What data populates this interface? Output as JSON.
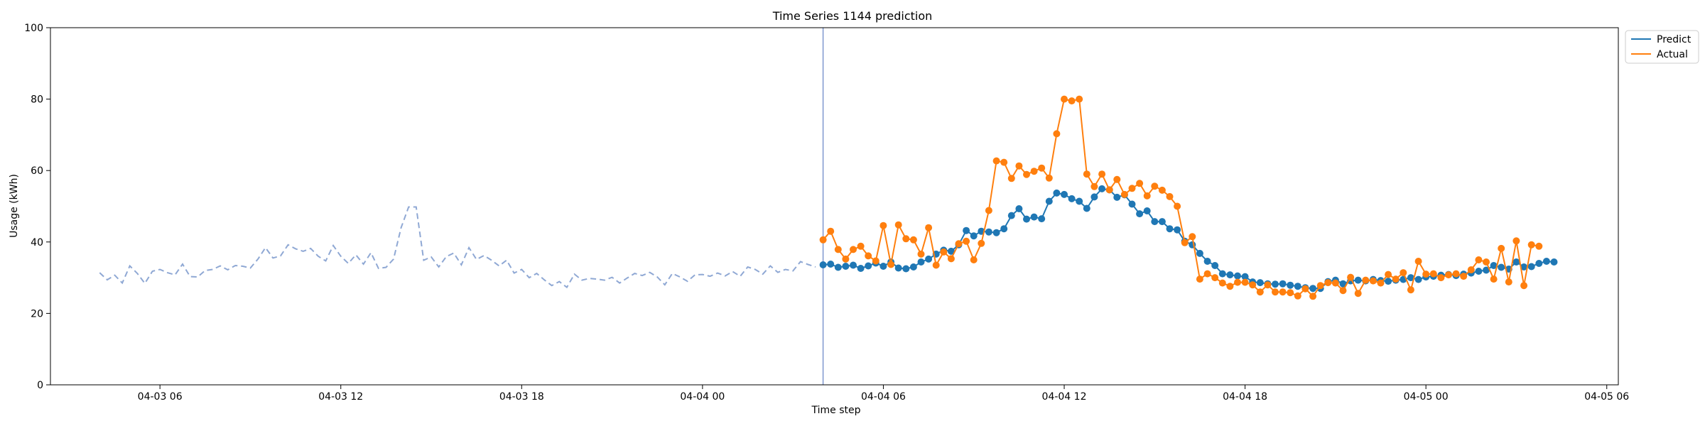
{
  "chart_data": {
    "type": "line",
    "title": "Time Series 1144 prediction",
    "xlabel": "Time step",
    "ylabel": "Usage (kWh)",
    "x_axis": {
      "start": "2024-04-03T00:00",
      "xlim": [
        "2024-04-03T02:22",
        "2024-04-05T06:23"
      ],
      "ticks": [
        {
          "t": "2024-04-03T06:00",
          "label": "04-03 06"
        },
        {
          "t": "2024-04-03T12:00",
          "label": "04-03 12"
        },
        {
          "t": "2024-04-03T18:00",
          "label": "04-03 18"
        },
        {
          "t": "2024-04-04T00:00",
          "label": "04-04 00"
        },
        {
          "t": "2024-04-04T06:00",
          "label": "04-04 06"
        },
        {
          "t": "2024-04-04T12:00",
          "label": "04-04 12"
        },
        {
          "t": "2024-04-04T18:00",
          "label": "04-04 18"
        },
        {
          "t": "2024-04-05T00:00",
          "label": "04-05 00"
        },
        {
          "t": "2024-04-05T06:00",
          "label": "04-05 06"
        }
      ]
    },
    "ylim": [
      0,
      100
    ],
    "yticks": [
      0,
      20,
      40,
      60,
      80,
      100
    ],
    "grid": false,
    "legend_position": "outside-top-right",
    "divider_time": "2024-04-04T04:00",
    "step_minutes": 15,
    "colors": {
      "history": "#8fa8d4",
      "predict": "#1f77b4",
      "actual": "#ff7f0e",
      "divider": "#7e97cf"
    },
    "history": {
      "start": "2024-04-03T04:00",
      "values": [
        31.4,
        29.4,
        30.7,
        28.5,
        33.3,
        31.2,
        28.4,
        31.8,
        32.3,
        31.4,
        30.8,
        33.8,
        30.3,
        30.2,
        32.0,
        32.3,
        33.3,
        32.2,
        33.4,
        33.2,
        32.7,
        35.2,
        38.4,
        35.5,
        36.1,
        39.2,
        38.1,
        37.4,
        38.2,
        36.0,
        34.7,
        39.0,
        36.0,
        34.0,
        36.4,
        33.8,
        37.0,
        32.6,
        32.9,
        35.2,
        44.0,
        49.8,
        49.8,
        34.9,
        35.8,
        33.0,
        35.9,
        36.9,
        33.6,
        38.4,
        35.1,
        36.2,
        34.9,
        33.3,
        34.9,
        31.3,
        32.3,
        30.0,
        31.2,
        29.4,
        27.8,
        28.9,
        27.3,
        31.0,
        29.3,
        29.8,
        29.6,
        29.3,
        30.1,
        28.5,
        29.9,
        31.2,
        30.6,
        31.5,
        30.2,
        28.0,
        31.2,
        30.2,
        29.0,
        30.8,
        30.9,
        30.4,
        31.3,
        30.5,
        31.7,
        30.4,
        33.0,
        32.3,
        31.0,
        33.3,
        31.5,
        32.3,
        31.9,
        34.5,
        33.7,
        33.0
      ]
    },
    "series": [
      {
        "name": "Predict",
        "start": "2024-04-04T04:00",
        "values": [
          33.6,
          33.8,
          32.9,
          33.2,
          33.5,
          32.6,
          33.3,
          34.1,
          33.2,
          34.4,
          32.7,
          32.5,
          33.0,
          34.4,
          35.2,
          36.6,
          37.7,
          37.4,
          39.2,
          43.2,
          41.7,
          43.0,
          42.8,
          42.6,
          43.7,
          47.4,
          49.3,
          46.4,
          47.0,
          46.5,
          51.4,
          53.7,
          53.3,
          52.1,
          51.4,
          49.4,
          52.6,
          54.9,
          54.6,
          52.5,
          53.2,
          50.6,
          47.9,
          48.7,
          45.7,
          45.7,
          43.7,
          43.4,
          40.2,
          39.2,
          36.8,
          34.6,
          33.4,
          31.1,
          30.8,
          30.5,
          30.3,
          28.8,
          28.6,
          28.3,
          28.2,
          28.3,
          27.9,
          27.6,
          27.2,
          27.0,
          27.0,
          28.9,
          29.3,
          28.3,
          29.1,
          29.3,
          29.1,
          29.5,
          29.2,
          29.0,
          29.3,
          29.5,
          30.0,
          29.5,
          30.2,
          30.4,
          30.7,
          30.9,
          30.6,
          31.0,
          31.3,
          31.8,
          32.1,
          33.4,
          32.9,
          32.4,
          34.4,
          33.0,
          33.1,
          34.0,
          34.6,
          34.4
        ]
      },
      {
        "name": "Actual",
        "start": "2024-04-04T04:00",
        "values": [
          40.6,
          43.0,
          37.9,
          35.2,
          37.9,
          38.8,
          36.1,
          34.7,
          44.6,
          33.7,
          44.8,
          40.9,
          40.6,
          36.6,
          44.0,
          33.5,
          37.2,
          35.3,
          39.5,
          40.2,
          35.0,
          39.6,
          48.8,
          62.7,
          62.3,
          57.8,
          61.3,
          58.9,
          59.8,
          60.7,
          57.9,
          70.3,
          80.0,
          79.5,
          80.0,
          59.0,
          55.5,
          59.0,
          54.6,
          57.5,
          53.3,
          55.0,
          56.4,
          52.9,
          55.6,
          54.5,
          52.7,
          50.0,
          39.8,
          41.5,
          29.6,
          31.1,
          30.0,
          28.5,
          27.6,
          28.7,
          28.7,
          28.0,
          26.0,
          28.0,
          26.0,
          26.0,
          25.8,
          24.9,
          26.9,
          24.8,
          27.8,
          28.6,
          28.5,
          26.4,
          30.1,
          25.6,
          29.3,
          29.1,
          28.5,
          30.9,
          29.6,
          31.4,
          26.6,
          34.6,
          31.0,
          31.1,
          30.0,
          30.8,
          31.1,
          30.4,
          32.2,
          35.0,
          34.4,
          29.6,
          38.2,
          28.8,
          40.3,
          27.8,
          39.2,
          38.8
        ]
      }
    ]
  }
}
